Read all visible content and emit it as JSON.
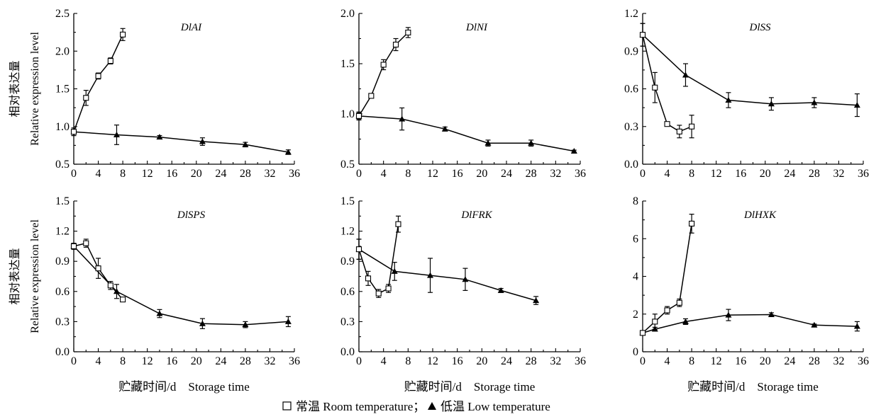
{
  "chart_data": [
    {
      "type": "line",
      "title": "DlAI",
      "ylabel_cn": "相对表达量",
      "ylabel_en": "Relative expression level",
      "xlabel": "",
      "xlim": [
        0,
        36
      ],
      "xticks": [
        0,
        4,
        8,
        12,
        16,
        20,
        24,
        28,
        32,
        36
      ],
      "ylim": [
        0.5,
        2.5
      ],
      "yticks": [
        "0.5",
        "1.0",
        "1.5",
        "2.0",
        "2.5"
      ],
      "series": [
        {
          "name": "常温 Room temperature",
          "marker": "square-open",
          "x": [
            0,
            2,
            4,
            6,
            8
          ],
          "y": [
            0.93,
            1.38,
            1.67,
            1.87,
            2.22
          ],
          "err": [
            0.05,
            0.1,
            0.04,
            0.04,
            0.08
          ]
        },
        {
          "name": "低温 Low temperature",
          "marker": "triangle-filled",
          "x": [
            0,
            7,
            14,
            21,
            28,
            35
          ],
          "y": [
            0.93,
            0.89,
            0.86,
            0.8,
            0.76,
            0.66
          ],
          "err": [
            0.05,
            0.13,
            0.02,
            0.05,
            0.03,
            0.03
          ]
        }
      ]
    },
    {
      "type": "line",
      "title": "DlNI",
      "xlabel": "",
      "xlim": [
        0,
        36
      ],
      "xticks": [
        0,
        4,
        8,
        12,
        16,
        20,
        24,
        28,
        32,
        36
      ],
      "ylim": [
        0.5,
        2.0
      ],
      "yticks": [
        "0.5",
        "1.0",
        "1.5",
        "2.0"
      ],
      "series": [
        {
          "name": "常温 Room temperature",
          "marker": "square-open",
          "x": [
            0,
            2,
            4,
            6,
            8
          ],
          "y": [
            0.98,
            1.18,
            1.49,
            1.69,
            1.81
          ],
          "err": [
            0.03,
            0.02,
            0.05,
            0.06,
            0.05
          ]
        },
        {
          "name": "低温 Low temperature",
          "marker": "triangle-filled",
          "x": [
            0,
            7,
            14,
            21,
            28,
            35
          ],
          "y": [
            0.98,
            0.95,
            0.85,
            0.71,
            0.71,
            0.63
          ],
          "err": [
            0.04,
            0.11,
            0.02,
            0.03,
            0.03,
            0.01
          ]
        }
      ]
    },
    {
      "type": "line",
      "title": "DlSS",
      "xlabel": "",
      "xlim": [
        0,
        36
      ],
      "xticks": [
        0,
        4,
        8,
        12,
        16,
        20,
        24,
        28,
        32,
        36
      ],
      "ylim": [
        0.0,
        1.2
      ],
      "yticks": [
        "0.0",
        "0.3",
        "0.6",
        "0.9",
        "1.2"
      ],
      "series": [
        {
          "name": "常温 Room temperature",
          "marker": "square-open",
          "x": [
            0,
            2,
            4,
            6,
            8
          ],
          "y": [
            1.03,
            0.61,
            0.32,
            0.26,
            0.3
          ],
          "err": [
            0.09,
            0.12,
            0.01,
            0.05,
            0.09
          ]
        },
        {
          "name": "低温 Low temperature",
          "marker": "triangle-filled",
          "x": [
            0,
            7,
            14,
            21,
            28,
            35
          ],
          "y": [
            1.03,
            0.71,
            0.51,
            0.48,
            0.49,
            0.47
          ],
          "err": [
            0.09,
            0.09,
            0.06,
            0.05,
            0.04,
            0.09
          ]
        }
      ]
    },
    {
      "type": "line",
      "title": "DlSPS",
      "ylabel_cn": "相对表达量",
      "ylabel_en": "Relative expression level",
      "xlabel": "贮藏时间/d　Storage time",
      "xlim": [
        0,
        36
      ],
      "xticks": [
        0,
        4,
        8,
        12,
        16,
        20,
        24,
        28,
        32,
        36
      ],
      "ylim": [
        0.0,
        1.5
      ],
      "yticks": [
        "0.0",
        "0.3",
        "0.6",
        "0.9",
        "1.2",
        "1.5"
      ],
      "series": [
        {
          "name": "常温 Room temperature",
          "marker": "square-open",
          "x": [
            0,
            2,
            4,
            6,
            8
          ],
          "y": [
            1.05,
            1.08,
            0.83,
            0.66,
            0.52
          ],
          "err": [
            0.03,
            0.04,
            0.1,
            0.04,
            0.02
          ]
        },
        {
          "name": "低温 Low temperature",
          "marker": "triangle-filled",
          "x": [
            0,
            7,
            14,
            21,
            28,
            35
          ],
          "y": [
            1.05,
            0.6,
            0.38,
            0.28,
            0.27,
            0.3
          ],
          "err": [
            0.03,
            0.07,
            0.04,
            0.05,
            0.03,
            0.05
          ]
        }
      ]
    },
    {
      "type": "line",
      "title": "DlFRK",
      "xlabel": "贮藏时间/d　Storage time",
      "xlim": [
        0,
        36
      ],
      "xticks": [
        0,
        4,
        8,
        12,
        16,
        20,
        24,
        28,
        32,
        36
      ],
      "ylim": [
        0.0,
        1.5
      ],
      "yticks": [
        "0.0",
        "0.3",
        "0.6",
        "0.9",
        "1.2",
        "1.5"
      ],
      "series": [
        {
          "name": "常温 Room temperature",
          "marker": "square-open",
          "x": [
            0,
            1.5,
            3.2,
            4.8,
            6.4
          ],
          "y": [
            1.02,
            0.73,
            0.58,
            0.63,
            1.27
          ],
          "err": [
            0.1,
            0.07,
            0.04,
            0.04,
            0.08
          ]
        },
        {
          "name": "低温 Low temperature",
          "marker": "triangle-filled",
          "x": [
            0,
            5.8,
            11.6,
            17.3,
            23.1,
            28.8
          ],
          "y": [
            1.02,
            0.8,
            0.76,
            0.72,
            0.61,
            0.51
          ],
          "err": [
            0.1,
            0.09,
            0.17,
            0.11,
            0.02,
            0.04
          ]
        }
      ]
    },
    {
      "type": "line",
      "title": "DlHXK",
      "xlabel": "贮藏时间/d　Storage time",
      "xlim": [
        0,
        36
      ],
      "xticks": [
        0,
        4,
        8,
        12,
        16,
        20,
        24,
        28,
        32,
        36
      ],
      "ylim": [
        0,
        8
      ],
      "yticks": [
        "0",
        "2",
        "4",
        "6",
        "8"
      ],
      "series": [
        {
          "name": "常温 Room temperature",
          "marker": "square-open",
          "x": [
            0,
            2,
            4,
            6,
            8
          ],
          "y": [
            1.0,
            1.6,
            2.2,
            2.6,
            6.8
          ],
          "err": [
            0.1,
            0.4,
            0.2,
            0.2,
            0.5
          ]
        },
        {
          "name": "低温 Low temperature",
          "marker": "triangle-filled",
          "x": [
            0,
            2,
            7,
            14,
            21,
            28,
            35
          ],
          "y": [
            1.0,
            1.2,
            1.6,
            1.95,
            1.97,
            1.42,
            1.35
          ],
          "err": [
            0.1,
            0.1,
            0.15,
            0.3,
            0.1,
            0.05,
            0.25
          ]
        }
      ]
    }
  ],
  "legend": {
    "position": "bottom-center",
    "room_label": "常温 Room temperature；",
    "low_label": "低温 Low temperature"
  }
}
